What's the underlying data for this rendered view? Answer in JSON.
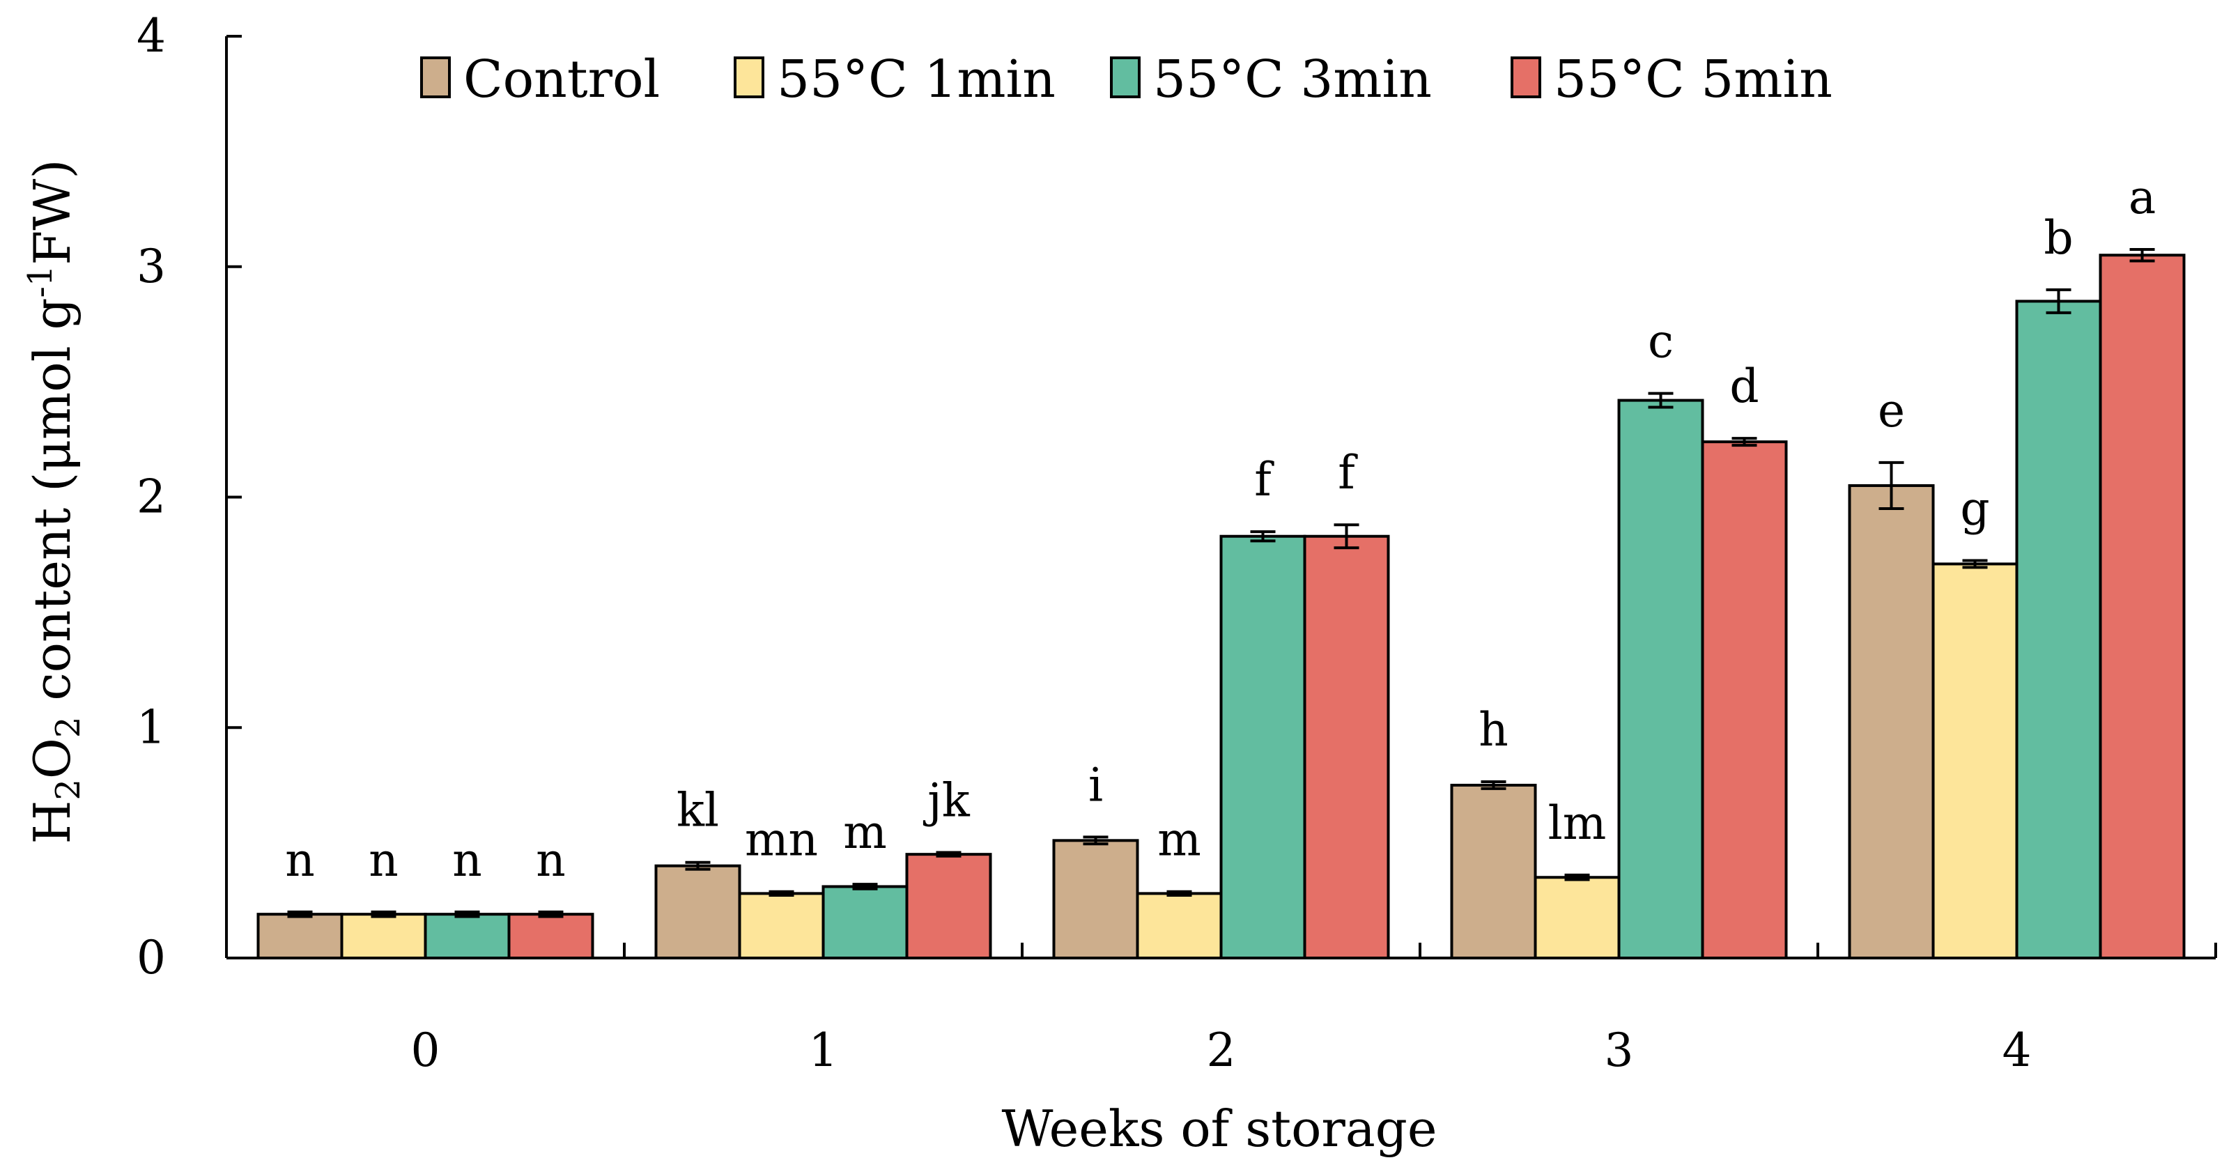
{
  "chart_data": {
    "type": "bar",
    "title": "",
    "xlabel": "Weeks of storage",
    "ylabel": {
      "prefix": "H",
      "sub1": "2",
      "mid": "O",
      "sub2": "2",
      "middle": " content (μmol g",
      "sup": "-1",
      "suffix": "FW)"
    },
    "categories": [
      "0",
      "1",
      "2",
      "3",
      "4"
    ],
    "ylim": [
      0,
      4
    ],
    "yticks": [
      "0",
      "1",
      "2",
      "3",
      "4"
    ],
    "legend_position": "top",
    "series": [
      {
        "name": "Control",
        "color": "#CDAE8C",
        "values": [
          0.19,
          0.4,
          0.51,
          0.75,
          2.05
        ],
        "errors": [
          0.01,
          0.015,
          0.015,
          0.015,
          0.1
        ],
        "labels": [
          "n",
          "kl",
          "i",
          "h",
          "e"
        ]
      },
      {
        "name": "55°C 1min",
        "color": "#FDE59A",
        "values": [
          0.19,
          0.28,
          0.28,
          0.35,
          1.71
        ],
        "errors": [
          0.01,
          0.008,
          0.008,
          0.01,
          0.015
        ],
        "labels": [
          "n",
          "mn",
          "m",
          "lm",
          "g"
        ]
      },
      {
        "name": "55°C 3min",
        "color": "#62BDA0",
        "values": [
          0.19,
          0.31,
          1.83,
          2.42,
          2.85
        ],
        "errors": [
          0.01,
          0.01,
          0.02,
          0.03,
          0.05
        ],
        "labels": [
          "n",
          "m",
          "f",
          "c",
          "b"
        ]
      },
      {
        "name": "55°C 5min",
        "color": "#E57067",
        "values": [
          0.19,
          0.45,
          1.83,
          2.24,
          3.05
        ],
        "errors": [
          0.01,
          0.008,
          0.05,
          0.015,
          0.025
        ],
        "labels": [
          "n",
          "jk",
          "f",
          "d",
          "a"
        ]
      }
    ]
  }
}
